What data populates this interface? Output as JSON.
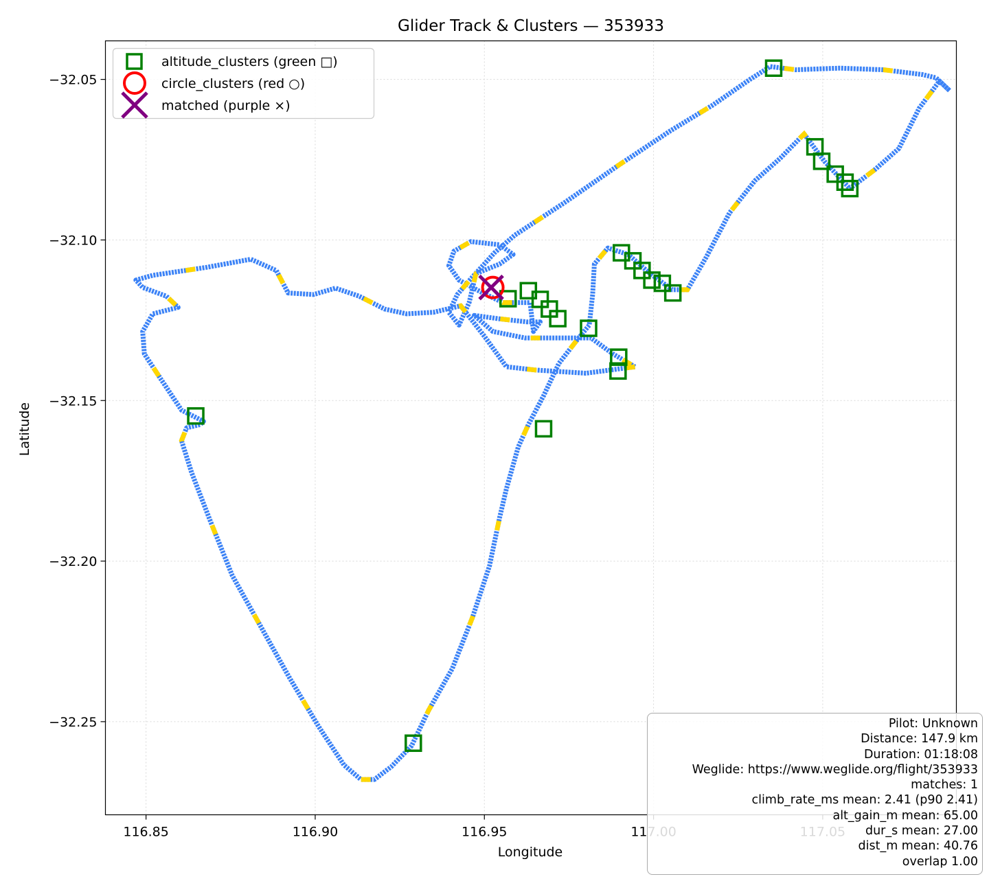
{
  "chart_data": {
    "type": "scatter",
    "title": "Glider Track & Clusters — 353933",
    "xlabel": "Longitude",
    "ylabel": "Latitude",
    "xlim": [
      116.838,
      117.0895
    ],
    "ylim": [
      -32.279,
      -32.038
    ],
    "xticks": [
      116.85,
      116.9,
      116.95,
      117.0,
      117.05
    ],
    "xtick_labels": [
      "116.85",
      "116.90",
      "116.95",
      "117.00",
      "117.05"
    ],
    "yticks": [
      -32.05,
      -32.1,
      -32.15,
      -32.2,
      -32.25
    ],
    "ytick_labels": [
      "−32.05",
      "−32.10",
      "−32.15",
      "−32.20",
      "−32.25"
    ],
    "grid": true,
    "legend_position": "upper-left",
    "colors": {
      "track": "#3b82f6",
      "track_alt": "#ffd700",
      "altitude_clusters": "#008000",
      "circle_clusters": "#ff0000",
      "matched": "#800080"
    },
    "series": [
      {
        "name": "altitude_clusters (green □)",
        "marker": "square",
        "x": [
          117.0355,
          117.0477,
          117.0497,
          117.0537,
          117.0566,
          117.058,
          116.9905,
          116.9939,
          116.9966,
          116.9995,
          117.0026,
          117.0057,
          116.957,
          116.963,
          116.9665,
          116.9692,
          116.9717,
          116.9808,
          116.9897,
          116.9895,
          116.9675,
          116.8647,
          116.929
        ],
        "y": [
          -32.0465,
          -32.071,
          -32.0755,
          -32.0795,
          -32.082,
          -32.084,
          -32.104,
          -32.1065,
          -32.1095,
          -32.1125,
          -32.1135,
          -32.1165,
          -32.1183,
          -32.1158,
          -32.1185,
          -32.1215,
          -32.1245,
          -32.1275,
          -32.1365,
          -32.1408,
          -32.1588,
          -32.1548,
          -32.2567
        ]
      },
      {
        "name": "circle_clusters (red ○)",
        "marker": "circle",
        "x": [
          116.9525
        ],
        "y": [
          -32.1148
        ]
      },
      {
        "name": "matched (purple ×)",
        "marker": "x",
        "x": [
          116.952
        ],
        "y": [
          -32.1148
        ]
      }
    ]
  },
  "info_box": {
    "lines": [
      "Pilot: Unknown",
      "Distance: 147.9 km",
      "Duration: 01:18:08",
      "Weglide: https://www.weglide.org/flight/353933",
      "matches: 1",
      "climb_rate_ms mean: 2.41 (p90 2.41)",
      "alt_gain_m mean: 65.00",
      "dur_s mean: 27.00",
      "dist_m mean: 40.76",
      "overlap 1.00"
    ]
  }
}
